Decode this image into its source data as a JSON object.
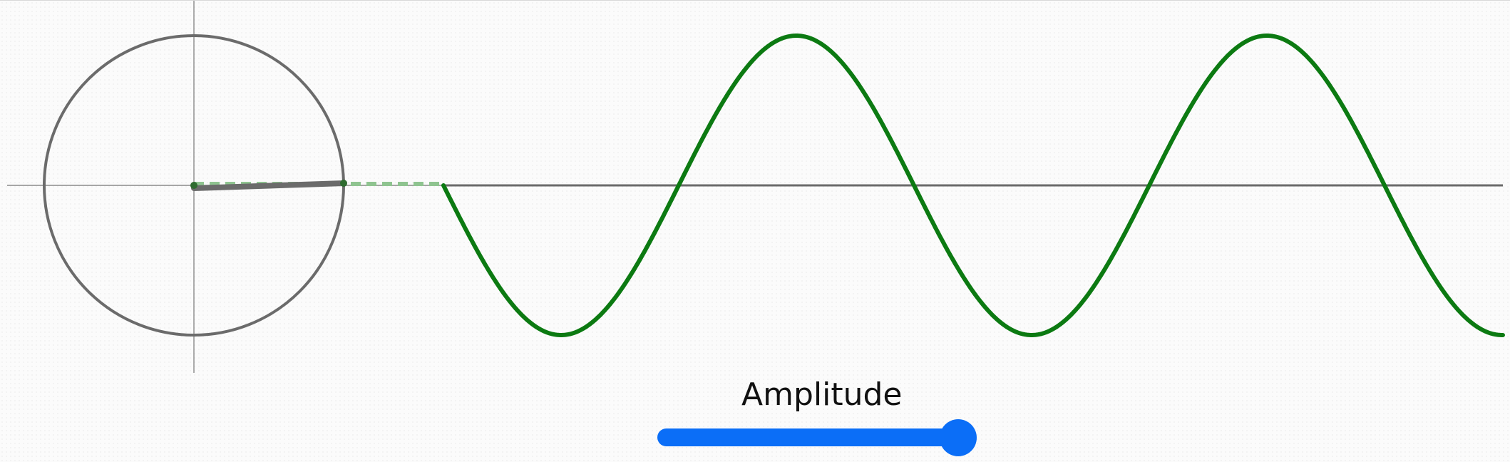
{
  "controls": {
    "amplitude_label": "Amplitude",
    "amplitude_value": 1.0,
    "amplitude_fill_fraction": 1.0
  },
  "wave": {
    "color": "#0c7a12",
    "cycles_visible": 2.35
  },
  "colors": {
    "accent": "#0b6ef7",
    "circle": "#6b6b6b",
    "axis": "#6b6b6b",
    "guide": "#8fc490",
    "background": "#fbfbfb"
  }
}
